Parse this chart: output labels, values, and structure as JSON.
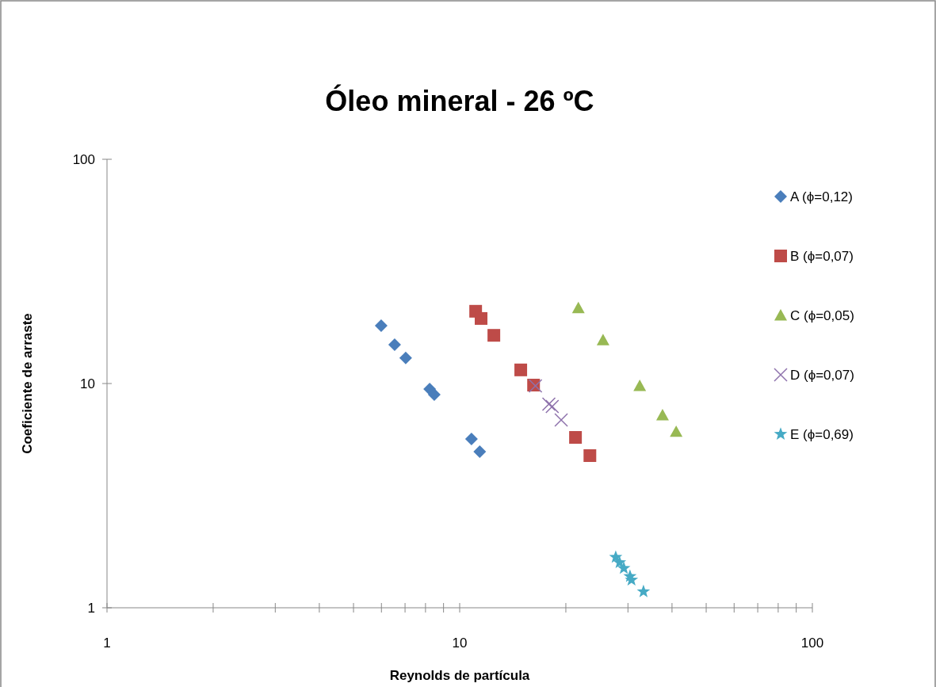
{
  "chart_data": {
    "type": "scatter",
    "title": "Óleo mineral - 26 ºC",
    "xlabel": "Reynolds de partícula",
    "ylabel": "Coeficiente de arraste",
    "log": "xy",
    "grid": false,
    "legend": "right",
    "xlim": [
      1,
      100
    ],
    "ylim": [
      1,
      100
    ],
    "xticks": [
      1,
      {
        "value": 2,
        "label": null
      },
      {
        "value": 3,
        "label": null
      },
      {
        "value": 4,
        "label": null
      },
      {
        "value": 5,
        "label": null
      },
      {
        "value": 6,
        "label": null
      },
      {
        "value": 7,
        "label": null
      },
      {
        "value": 8,
        "label": null
      },
      {
        "value": 9,
        "label": null
      },
      10,
      {
        "value": 20,
        "label": null
      },
      {
        "value": 30,
        "label": null
      },
      {
        "value": 40,
        "label": null
      },
      {
        "value": 50,
        "label": null
      },
      {
        "value": 60,
        "label": null
      },
      {
        "value": 70,
        "label": null
      },
      {
        "value": 80,
        "label": null
      },
      {
        "value": 90,
        "label": null
      },
      100
    ],
    "yticks": [
      1,
      10,
      100
    ],
    "series": [
      {
        "name": "A (ϕ=0,12)",
        "color": "#4a7ebb",
        "marker": "diamond",
        "x": [
          5.99,
          6.54,
          7.03,
          8.22,
          8.47,
          10.8,
          11.4
        ],
        "values": [
          18.1,
          14.9,
          13.0,
          9.45,
          8.92,
          5.66,
          4.97
        ]
      },
      {
        "name": "B (ϕ=0,07)",
        "color": "#be4b48",
        "marker": "square",
        "x": [
          11.1,
          11.5,
          12.5,
          14.9,
          16.2,
          21.3,
          23.4
        ],
        "values": [
          21.0,
          19.5,
          16.4,
          11.5,
          9.84,
          5.75,
          4.77
        ]
      },
      {
        "name": "C (ϕ=0,05)",
        "color": "#98b954",
        "marker": "triangle",
        "x": [
          21.7,
          25.5,
          32.4,
          37.6,
          41.1
        ],
        "values": [
          21.7,
          15.6,
          9.76,
          7.22,
          6.09
        ]
      },
      {
        "name": "D (ϕ=0,07)",
        "color": "#8e72ac",
        "marker": "cross",
        "x": [
          16.4,
          17.9,
          18.3,
          19.4
        ],
        "values": [
          9.76,
          8.09,
          7.9,
          6.88
        ]
      },
      {
        "name": "E (ϕ=0,69)",
        "color": "#46aac5",
        "marker": "star",
        "x": [
          27.7,
          28.4,
          29.2,
          30.4,
          30.7,
          33.2
        ],
        "values": [
          1.68,
          1.59,
          1.5,
          1.38,
          1.33,
          1.18
        ]
      }
    ]
  }
}
